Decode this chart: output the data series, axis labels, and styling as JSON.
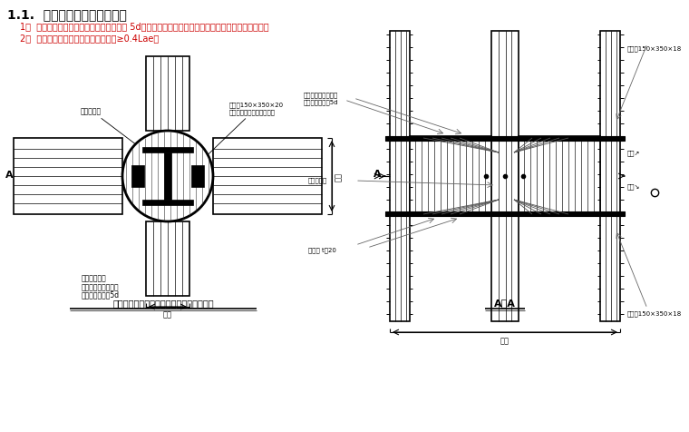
{
  "bg_color": "#ffffff",
  "title_text": "1.1.  梁纵筋与型钢柱连接方法",
  "item1": "1）  梁纵筋焊于钢牛腿、加劲肋上，双面焊 5d；当有双排筋时，第二排筋焊于钢牛腿或加劲肋下侧；",
  "item2": "2）  梁纵筋弯锚，满足水平段锚固长度≥0.4Lae。",
  "caption_left": "非转换层型钢圆柱与钢筋混凝土梁节点详图",
  "caption_right": "A－A",
  "line_color": "#000000",
  "text_color": "#000000",
  "red_color": "#cc0000"
}
